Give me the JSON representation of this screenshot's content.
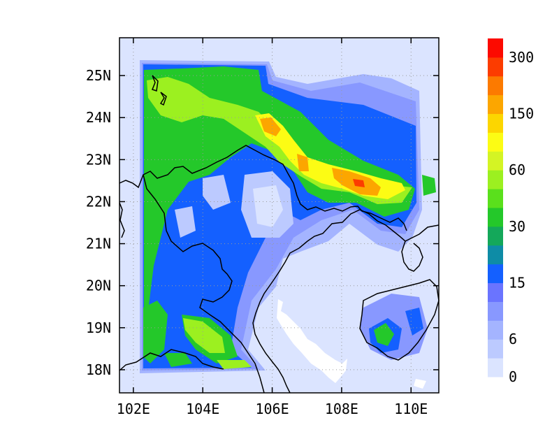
{
  "map": {
    "lat_ticks": [
      {
        "lat": 25,
        "label": "25N"
      },
      {
        "lat": 24,
        "label": "24N"
      },
      {
        "lat": 23,
        "label": "23N"
      },
      {
        "lat": 22,
        "label": "22N"
      },
      {
        "lat": 21,
        "label": "21N"
      },
      {
        "lat": 20,
        "label": "20N"
      },
      {
        "lat": 19,
        "label": "19N"
      },
      {
        "lat": 18,
        "label": "18N"
      }
    ],
    "lon_ticks": [
      {
        "lon": 102,
        "label": "102E"
      },
      {
        "lon": 104,
        "label": "104E"
      },
      {
        "lon": 106,
        "label": "106E"
      },
      {
        "lon": 108,
        "label": "108E"
      },
      {
        "lon": 110,
        "label": "110E"
      }
    ],
    "extent": {
      "lon_min": 101.6,
      "lon_max": 110.8,
      "lat_min": 17.45,
      "lat_max": 25.9
    },
    "gridlines": "dotted"
  },
  "colorbar": {
    "labels": [
      "0",
      "6",
      "15",
      "30",
      "60",
      "150",
      "300"
    ],
    "colors": [
      "#dbe4ff",
      "#bccaff",
      "#a4b4ff",
      "#8898ff",
      "#6a74ff",
      "#1460ff",
      "#0e8ca6",
      "#14a85a",
      "#24c82a",
      "#5ae01c",
      "#9cf020",
      "#d4f424",
      "#fcfc14",
      "#fcd600",
      "#fca600",
      "#fc7a00",
      "#fc3c00",
      "#fc0a00"
    ]
  },
  "field_colors": {
    "light_blue": "#dbe4ff",
    "pale_blue": "#bccaff",
    "lavender": "#a4b4ff",
    "periwinkle": "#8898ff",
    "blue": "#1460ff",
    "dark_green": "#14a85a",
    "green": "#24c82a",
    "lime": "#9cf020",
    "yellow": "#fcfc14",
    "orange": "#fca600",
    "red": "#fc3c00"
  }
}
